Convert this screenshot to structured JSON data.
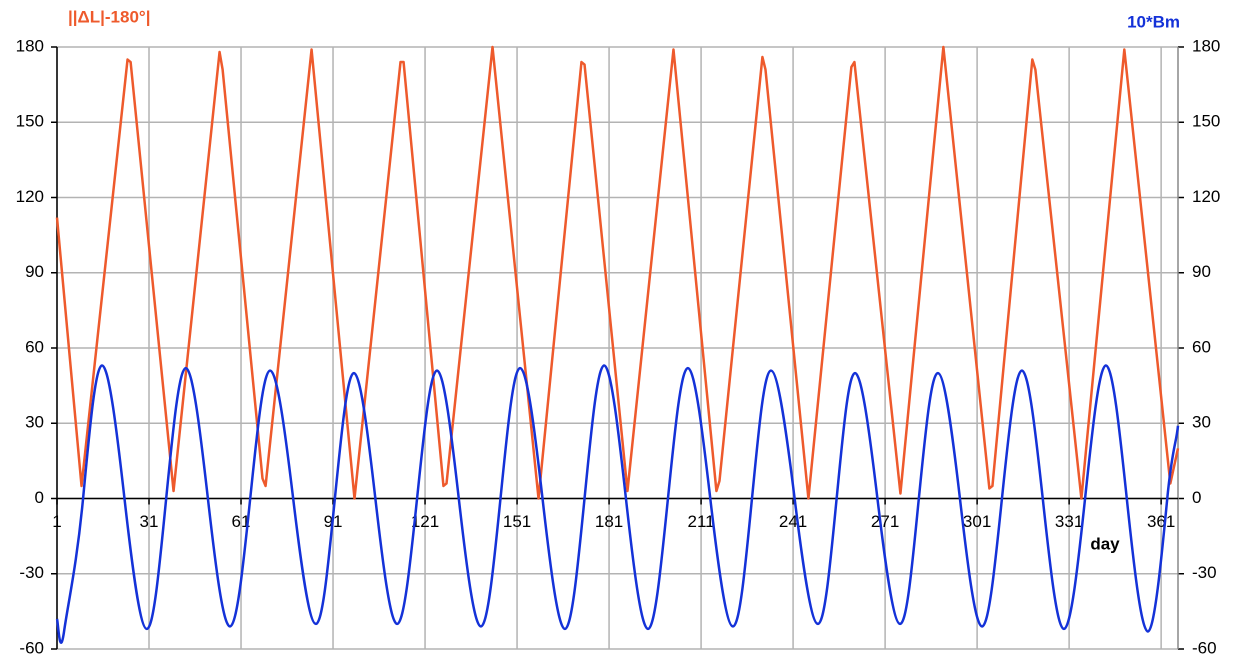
{
  "chart_data": {
    "type": "line",
    "y_label": "||ΔL|-180°|",
    "y2_label": "10*Bm",
    "x_label": "day",
    "xlim": [
      1,
      366.5
    ],
    "xticks": [
      1,
      31,
      61,
      91,
      121,
      151,
      181,
      211,
      241,
      271,
      301,
      331,
      361
    ],
    "ylim": [
      -60,
      180
    ],
    "yticks": [
      -60,
      -30,
      0,
      30,
      60,
      90,
      120,
      150,
      180
    ],
    "y2lim": [
      -60,
      180
    ],
    "y2ticks": [
      -60,
      -30,
      0,
      30,
      60,
      90,
      120,
      150,
      180
    ],
    "grid": true,
    "series": [
      {
        "name": "||ΔL|-180°|",
        "color": "#ee5a2c",
        "smooth": false,
        "x": [
          1,
          9,
          24,
          25,
          39,
          54,
          55,
          68,
          69,
          84,
          98,
          113,
          114,
          127,
          128,
          143,
          158,
          172,
          173,
          187,
          202,
          216,
          217,
          231,
          232,
          246,
          260,
          261,
          276,
          290,
          305,
          306,
          319,
          320,
          335,
          349,
          364,
          366.5
        ],
        "values": [
          112,
          5,
          175,
          174,
          3,
          178,
          171,
          8,
          5,
          179,
          0,
          174,
          174,
          5,
          6,
          180,
          0,
          174,
          173,
          3,
          179,
          3,
          7,
          176,
          171,
          0,
          172,
          174,
          2,
          180,
          4,
          5,
          175,
          171,
          0,
          179,
          6,
          20
        ]
      },
      {
        "name": "10*Bm",
        "color": "#1432d8",
        "axis": "y2",
        "smooth": true,
        "x": [
          1,
          3.3,
          9.5,
          15.7,
          23,
          30.3,
          36.6,
          43,
          50.2,
          57.4,
          64,
          70.5,
          78,
          85.4,
          91.6,
          97.8,
          104.8,
          111.9,
          118.4,
          124.9,
          132,
          139.2,
          145.6,
          152,
          159.3,
          166.6,
          173,
          179.4,
          186.5,
          193.7,
          200.2,
          206.7,
          214,
          221.4,
          227.6,
          233.8,
          241.5,
          249.1,
          255.2,
          261.2,
          268.5,
          275.9,
          282,
          288.2,
          295.4,
          302.6,
          309.1,
          315.6,
          322.4,
          329.3,
          336.2,
          343,
          349.8,
          356.7,
          363,
          366.5
        ],
        "values": [
          -48,
          -53,
          0,
          53,
          0,
          -52,
          0,
          52,
          0,
          -51,
          0,
          51,
          0,
          -50,
          0,
          50,
          0,
          -50,
          0,
          51,
          0,
          -51,
          0,
          52,
          0,
          -52,
          0,
          53,
          0,
          -52,
          0,
          52,
          0,
          -51,
          0,
          51,
          0,
          -50,
          0,
          50,
          0,
          -50,
          0,
          50,
          0,
          -51,
          0,
          51,
          0,
          -52,
          0,
          53,
          0,
          -53,
          0,
          29
        ]
      }
    ]
  }
}
